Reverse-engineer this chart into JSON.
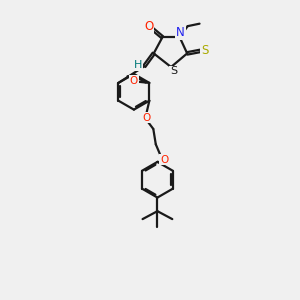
{
  "background": "#f0f0f0",
  "bond_color": "#1a1a1a",
  "lw": 1.6,
  "colors": {
    "O": "#ff2200",
    "N": "#2222ee",
    "S_thio": "#aaaa00",
    "S_ring": "#1a1a1a",
    "H_teal": "#007777"
  },
  "figsize": [
    3.0,
    3.0
  ],
  "dpi": 100,
  "xlim": [
    1.5,
    8.5
  ],
  "ylim": [
    0.5,
    12.5
  ]
}
